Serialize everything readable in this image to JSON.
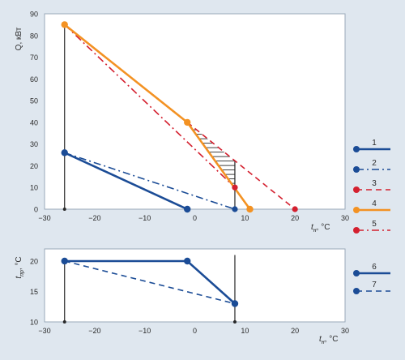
{
  "charts": [
    {
      "type": "line",
      "ylabel": "Q, кВт",
      "xlabel": "tн, °C",
      "xlabel_main": "t",
      "xlabel_sub": "н",
      "xlabel_unit": ", °C",
      "x_ticks": [
        -30,
        -20,
        -10,
        0,
        10,
        20,
        30
      ],
      "y_ticks": [
        0,
        10,
        20,
        30,
        40,
        50,
        60,
        70,
        80,
        90
      ],
      "xlim": [
        -30,
        30
      ],
      "ylim": [
        0,
        90
      ],
      "grid": false,
      "legend_position": "right",
      "series": [
        {
          "name": "1",
          "color": "#1b4c96",
          "style": "solid",
          "points": [
            [
              -26,
              26
            ],
            [
              -1.5,
              0
            ]
          ]
        },
        {
          "name": "2",
          "color": "#1b4c96",
          "style": "dashdot",
          "points": [
            [
              -26,
              26
            ],
            [
              8,
              0
            ]
          ]
        },
        {
          "name": "3",
          "color": "#d4202f",
          "style": "dash",
          "points": [
            [
              -1.5,
              40
            ],
            [
              20,
              0
            ]
          ]
        },
        {
          "name": "4",
          "color": "#f39223",
          "style": "solid",
          "points": [
            [
              -26,
              85
            ],
            [
              -1.5,
              40
            ],
            [
              11,
              0
            ]
          ]
        },
        {
          "name": "5",
          "color": "#d4202f",
          "style": "dashdot",
          "points": [
            [
              -26,
              85
            ],
            [
              8,
              10
            ]
          ]
        }
      ],
      "vertical_lines_x": [
        -26,
        8
      ],
      "hatch_region": {
        "x_range": [
          -1.5,
          8
        ],
        "pattern": "horizontal"
      }
    },
    {
      "type": "line",
      "ylabel": "tпр, °C",
      "ylabel_main": "t",
      "ylabel_sub": "пр",
      "ylabel_unit": ", °C",
      "xlabel": "tн, °C",
      "xlabel_main": "t",
      "xlabel_sub": "н",
      "xlabel_unit": ", °C",
      "x_ticks": [
        -30,
        -20,
        -10,
        0,
        10,
        20,
        30
      ],
      "y_ticks": [
        10,
        15,
        20
      ],
      "xlim": [
        -30,
        30
      ],
      "ylim": [
        10,
        22
      ],
      "grid": false,
      "legend_position": "right",
      "series": [
        {
          "name": "6",
          "color": "#1b4c96",
          "style": "solid",
          "points": [
            [
              -26,
              20
            ],
            [
              -1.5,
              20
            ],
            [
              8,
              13
            ]
          ]
        },
        {
          "name": "7",
          "color": "#1b4c96",
          "style": "dash",
          "points": [
            [
              -26,
              20
            ],
            [
              8,
              13
            ]
          ]
        }
      ],
      "vertical_lines_x": [
        -26,
        8
      ]
    }
  ]
}
